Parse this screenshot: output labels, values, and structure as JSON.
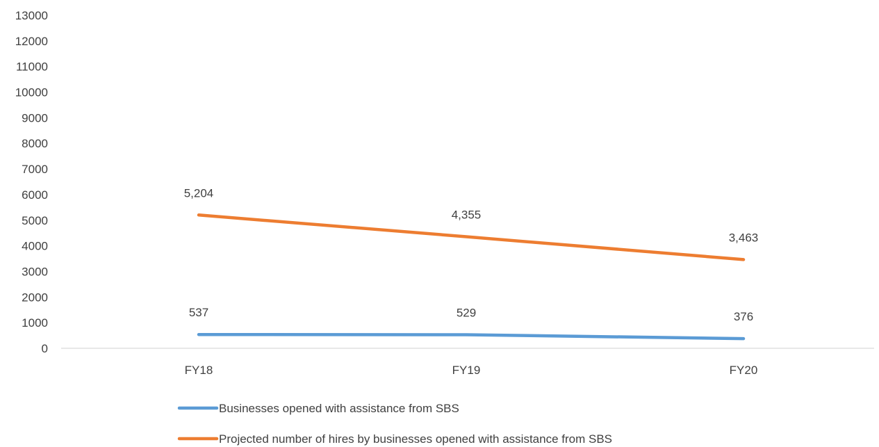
{
  "chart_data": {
    "type": "line",
    "categories": [
      "FY18",
      "FY19",
      "FY20"
    ],
    "ylim": [
      0,
      13000
    ],
    "yticks": [
      0,
      1000,
      2000,
      3000,
      4000,
      5000,
      6000,
      7000,
      8000,
      9000,
      10000,
      11000,
      12000,
      13000
    ],
    "grid": false,
    "legend_position": "bottom",
    "series": [
      {
        "name": "Businesses opened with assistance from SBS",
        "values": [
          537,
          529,
          376
        ],
        "labels": [
          "537",
          "529",
          "376"
        ],
        "color": "#5B9BD5"
      },
      {
        "name": "Projected number of hires by businesses opened with assistance from SBS",
        "values": [
          5204,
          4355,
          3463
        ],
        "labels": [
          "5,204",
          "4,355",
          "3,463"
        ],
        "color": "#ED7D31"
      }
    ]
  }
}
